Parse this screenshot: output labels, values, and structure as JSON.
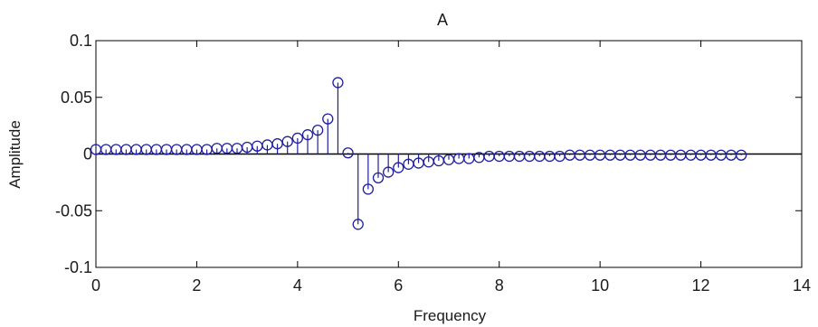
{
  "chart_data": {
    "type": "stem",
    "title": "A",
    "xlabel": "Frequency",
    "ylabel": "Amplitude",
    "xlim": [
      0,
      14
    ],
    "ylim": [
      -0.1,
      0.1
    ],
    "xticks": [
      0,
      2,
      4,
      6,
      8,
      10,
      12,
      14
    ],
    "xtick_labels": [
      "0",
      "2",
      "4",
      "6",
      "8",
      "10",
      "12",
      "14"
    ],
    "yticks": [
      0.1,
      0.05,
      0,
      -0.05,
      -0.1
    ],
    "ytick_labels": [
      "0.1",
      "0.05",
      "0",
      "-0.05",
      "-0.1"
    ],
    "grid": false,
    "marker": "circle-open",
    "color": "#1f1f9f",
    "baseline_color": "#000000",
    "series": [
      {
        "x": [
          0,
          0.2,
          0.4,
          0.6,
          0.8,
          1.0,
          1.2,
          1.4,
          1.6,
          1.8,
          2.0,
          2.2,
          2.4,
          2.6,
          2.8,
          3.0,
          3.2,
          3.4,
          3.6,
          3.8,
          4.0,
          4.2,
          4.4,
          4.6,
          4.8,
          5.0,
          5.2,
          5.4,
          5.6,
          5.8,
          6.0,
          6.2,
          6.4,
          6.6,
          6.8,
          7.0,
          7.2,
          7.4,
          7.6,
          7.8,
          8.0,
          8.2,
          8.4,
          8.6,
          8.8,
          9.0,
          9.2,
          9.4,
          9.6,
          9.8,
          10.0,
          10.2,
          10.4,
          10.6,
          10.8,
          11.0,
          11.2,
          11.4,
          11.6,
          11.8,
          12.0,
          12.2,
          12.4,
          12.6,
          12.8
        ],
        "values": [
          0.004,
          0.004,
          0.004,
          0.004,
          0.004,
          0.004,
          0.004,
          0.004,
          0.004,
          0.004,
          0.004,
          0.004,
          0.005,
          0.005,
          0.005,
          0.006,
          0.007,
          0.008,
          0.009,
          0.011,
          0.014,
          0.017,
          0.021,
          0.031,
          0.063,
          0.001,
          -0.062,
          -0.031,
          -0.021,
          -0.016,
          -0.012,
          -0.009,
          -0.008,
          -0.007,
          -0.006,
          -0.005,
          -0.004,
          -0.004,
          -0.003,
          -0.002,
          -0.002,
          -0.002,
          -0.002,
          -0.002,
          -0.002,
          -0.002,
          -0.002,
          -0.001,
          -0.001,
          -0.001,
          -0.001,
          -0.001,
          -0.001,
          -0.001,
          -0.001,
          -0.001,
          -0.001,
          -0.001,
          -0.001,
          -0.001,
          -0.001,
          -0.001,
          -0.001,
          -0.001,
          -0.001
        ]
      }
    ]
  }
}
